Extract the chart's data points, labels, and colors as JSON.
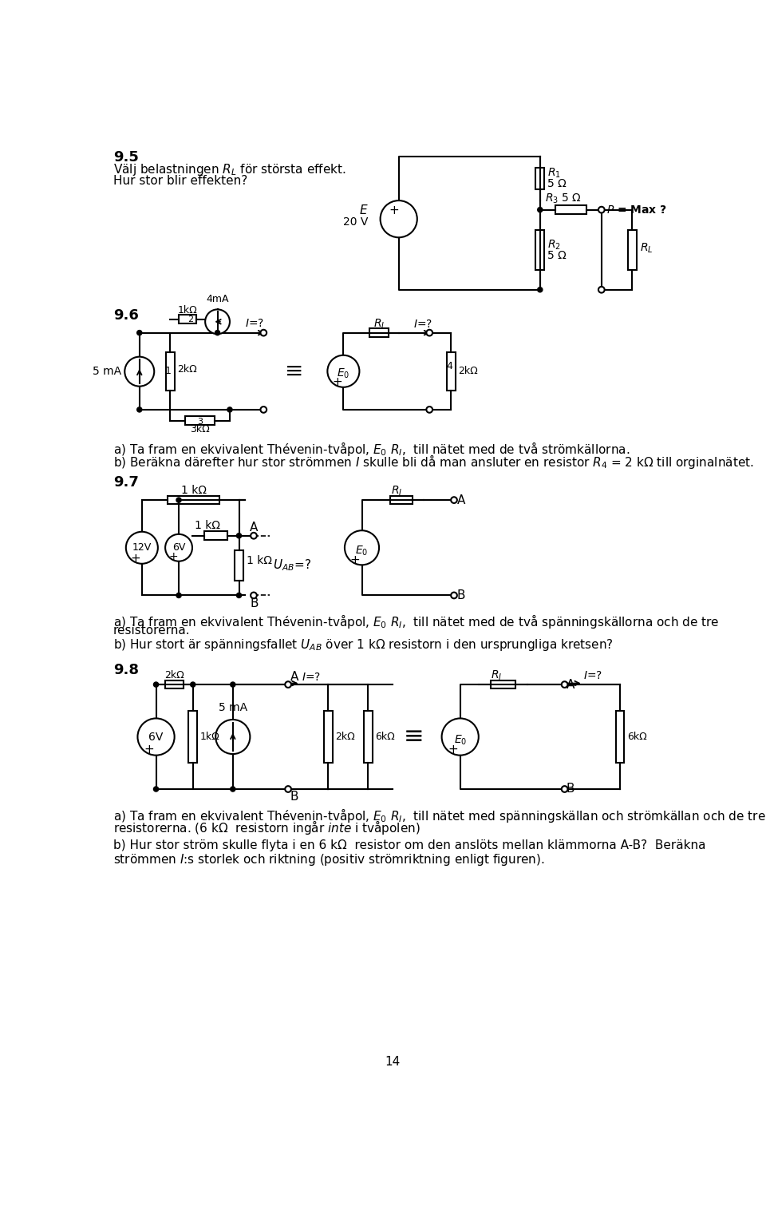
{
  "bg": "#ffffff",
  "page_num": "14",
  "s95_h": "9.5",
  "s95_l1": "Välj belastningen $R_L$ för största effekt.",
  "s95_l2": "Hur stor blir effekten?",
  "s96_h": "9.6",
  "s96_a": "a) Ta fram en ekvivalent Thévenin-tvåpol, $E_0$ $R_I$,  till nätet med de två strömkällorna.",
  "s96_b": "b) Beräkna därefter hur stor strömmen $I$ skulle bli då man ansluter en resistor $R_4$ = 2 kΩ till orginalnätet.",
  "s97_h": "9.7",
  "s97_a": "a) Ta fram en ekvivalent Thévenin-tvåpol, $E_0$ $R_I$,  till nätet med de två spänningskällorna och de tre",
  "s97_a2": "resistorerna.",
  "s97_b": "b) Hur stort är spänningsfallet $U_{AB}$ över 1 kΩ resistorn i den ursprungliga kretsen?",
  "s98_h": "9.8",
  "s98_a": "a) Ta fram en ekvivalent Thévenin-tvåpol, $E_0$ $R_I$,  till nätet med spänningskällan och strömkällan och de tre",
  "s98_a2": "resistorerna. (6 kΩ  resistorn ingår $\\it{inte}$ i tvåpolen)",
  "s98_b": "b) Hur stor ström skulle flyta i en 6 kΩ  resistor om den anslöts mellan klämmorna A-B?  Beräkna",
  "s98_b2": "strömmen $I$:s storlek och riktning (positiv strömriktning enligt figuren)."
}
